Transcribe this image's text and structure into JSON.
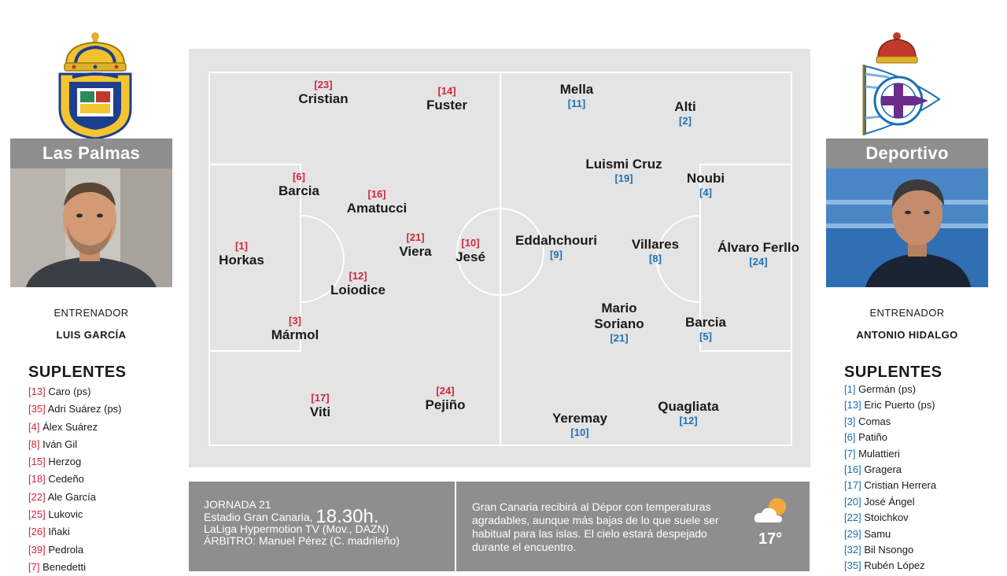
{
  "home": {
    "team": "Las Palmas",
    "coach_label": "ENTRENADOR",
    "coach_name": "LUIS GARCÍA",
    "subs_title": "SUPLENTES",
    "subs": [
      {
        "num": "[13]",
        "name": "Caro (ps)"
      },
      {
        "num": "[35]",
        "name": "Adri Suárez (ps)"
      },
      {
        "num": "[4]",
        "name": "Álex Suárez"
      },
      {
        "num": "[8]",
        "name": "Iván Gil"
      },
      {
        "num": "[15]",
        "name": "Herzog"
      },
      {
        "num": "[18]",
        "name": "Cedeño"
      },
      {
        "num": "[22]",
        "name": "Ale García"
      },
      {
        "num": "[25]",
        "name": "Lukovic"
      },
      {
        "num": "[26]",
        "name": "Iñaki"
      },
      {
        "num": "[39]",
        "name": "Pedrola"
      },
      {
        "num": "[7]",
        "name": "Benedetti"
      }
    ],
    "players": [
      {
        "num": "[23]",
        "name": "Cristian"
      },
      {
        "num": "[14]",
        "name": "Fuster"
      },
      {
        "num": "[6]",
        "name": "Barcia"
      },
      {
        "num": "[16]",
        "name": "Amatucci"
      },
      {
        "num": "[1]",
        "name": "Horkas"
      },
      {
        "num": "[21]",
        "name": "Viera"
      },
      {
        "num": "[10]",
        "name": "Jesé"
      },
      {
        "num": "[12]",
        "name": "Loiodice"
      },
      {
        "num": "[3]",
        "name": "Mármol"
      },
      {
        "num": "[17]",
        "name": "Viti"
      },
      {
        "num": "[24]",
        "name": "Pejiño"
      }
    ]
  },
  "away": {
    "team": "Deportivo",
    "coach_label": "ENTRENADOR",
    "coach_name": "ANTONIO HIDALGO",
    "subs_title": "SUPLENTES",
    "subs": [
      {
        "num": "[1]",
        "name": "Germán (ps)"
      },
      {
        "num": "[13]",
        "name": "Eric Puerto (ps)"
      },
      {
        "num": "[3]",
        "name": "Comas"
      },
      {
        "num": "[6]",
        "name": "Patiño"
      },
      {
        "num": "[7]",
        "name": "Mulattieri"
      },
      {
        "num": "[16]",
        "name": "Gragera"
      },
      {
        "num": "[17]",
        "name": "Cristian Herrera"
      },
      {
        "num": "[20]",
        "name": "José Ángel"
      },
      {
        "num": "[22]",
        "name": "Stoichkov"
      },
      {
        "num": "[29]",
        "name": "Samu"
      },
      {
        "num": "[32]",
        "name": "Bil Nsongo"
      },
      {
        "num": "[35]",
        "name": "Rubén López"
      }
    ],
    "players": [
      {
        "num": "[11]",
        "name": "Mella"
      },
      {
        "num": "[2]",
        "name": "Alti"
      },
      {
        "num": "[19]",
        "name": "Luismi Cruz"
      },
      {
        "num": "[4]",
        "name": "Noubi"
      },
      {
        "num": "[9]",
        "name": "Eddahchouri"
      },
      {
        "num": "[8]",
        "name": "Villares"
      },
      {
        "num": "[24]",
        "name": "Álvaro Ferllo"
      },
      {
        "num": "[21]",
        "name": "Mario Soriano"
      },
      {
        "num": "[5]",
        "name": "Barcia"
      },
      {
        "num": "[10]",
        "name": "Yeremay"
      },
      {
        "num": "[12]",
        "name": "Quagliata"
      }
    ]
  },
  "match": {
    "jornada": "JORNADA 21",
    "venue": "Estadio Gran Canaria,",
    "time": "18.30h.",
    "tv": "LaLiga Hypermotion TV (Mov., DAZN)",
    "referee": "ÁRBITRO: Manuel Pérez (C. madrileño)"
  },
  "weather": {
    "text": "Gran Canaria recibirá al Dépor con temperaturas agradables, aunque más bajas de lo que suele ser habitual para las islas. El cielo estará despejado durante el encuentro.",
    "temp": "17°",
    "icon": "partly-cloudy-icon"
  },
  "colors": {
    "home_number": "#d0263a",
    "away_number": "#1f6fb5",
    "bar_gray": "#8e8e8e",
    "pitch_gray": "#e4e4e4"
  }
}
